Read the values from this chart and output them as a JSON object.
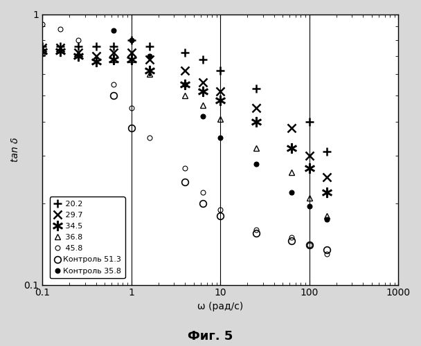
{
  "xlabel": "ω (рад/с)",
  "ylabel": "tan δ",
  "xlim": [
    0.1,
    1000
  ],
  "ylim": [
    0.1,
    1.0
  ],
  "figure_title": "Фиг. 5",
  "series": [
    {
      "label": " 20.2",
      "marker": "P",
      "markersize": 8,
      "fillstyle": "none",
      "mew": 1.5,
      "x": [
        0.1,
        0.158,
        0.251,
        0.398,
        0.631,
        1.0,
        1.585,
        3.98,
        6.31,
        10.0,
        25.1,
        100.0,
        158.0
      ],
      "y": [
        0.76,
        0.76,
        0.76,
        0.76,
        0.76,
        0.8,
        0.76,
        0.72,
        0.68,
        0.62,
        0.53,
        0.4,
        0.31
      ]
    },
    {
      "label": " 29.7",
      "marker": "X",
      "markersize": 7,
      "fillstyle": "none",
      "mew": 1.5,
      "x": [
        0.1,
        0.158,
        0.251,
        0.398,
        0.631,
        1.0,
        1.585,
        3.98,
        6.31,
        10.0,
        25.1,
        63.1,
        100.0,
        158.0
      ],
      "y": [
        0.75,
        0.75,
        0.72,
        0.7,
        0.72,
        0.72,
        0.68,
        0.62,
        0.56,
        0.52,
        0.45,
        0.38,
        0.3,
        0.25
      ]
    },
    {
      "label": " 34.5",
      "marker": "8",
      "markersize": 8,
      "fillstyle": "none",
      "mew": 1.0,
      "x": [
        0.1,
        0.158,
        0.251,
        0.398,
        0.631,
        1.0,
        1.585,
        3.98,
        6.31,
        10.0,
        25.1,
        63.1,
        100.0,
        158.0
      ],
      "y": [
        0.73,
        0.73,
        0.7,
        0.67,
        0.68,
        0.68,
        0.62,
        0.55,
        0.52,
        0.48,
        0.4,
        0.32,
        0.27,
        0.22
      ]
    },
    {
      "label": " 36.8",
      "marker": "^",
      "markersize": 6,
      "fillstyle": "none",
      "mew": 1.0,
      "x": [
        0.1,
        0.631,
        1.0,
        1.585,
        3.98,
        6.31,
        10.0,
        25.1,
        63.1,
        100.0,
        158.0
      ],
      "y": [
        0.72,
        0.68,
        0.68,
        0.6,
        0.5,
        0.46,
        0.41,
        0.32,
        0.26,
        0.21,
        0.18
      ]
    },
    {
      "label": " 45.8",
      "marker": "o",
      "markersize": 5,
      "fillstyle": "none",
      "mew": 1.0,
      "x": [
        0.1,
        0.158,
        0.251,
        0.398,
        0.631,
        1.0,
        1.585,
        3.98,
        6.31,
        10.0,
        25.1,
        63.1,
        100.0,
        158.0
      ],
      "y": [
        0.92,
        0.88,
        0.8,
        0.68,
        0.55,
        0.45,
        0.35,
        0.27,
        0.22,
        0.19,
        0.16,
        0.15,
        0.14,
        0.13
      ]
    },
    {
      "label": "Контроль 51.3",
      "marker": "o",
      "markersize": 7,
      "fillstyle": "none",
      "mew": 1.2,
      "x": [
        0.631,
        1.0,
        3.98,
        6.31,
        10.0,
        25.1,
        63.1,
        100.0,
        158.0
      ],
      "y": [
        0.5,
        0.38,
        0.24,
        0.2,
        0.18,
        0.155,
        0.145,
        0.14,
        0.135
      ]
    },
    {
      "label": "Контроль 35.8",
      "marker": "o",
      "markersize": 5,
      "fillstyle": "full",
      "mew": 1.0,
      "x": [
        0.631,
        1.0,
        1.585,
        3.98,
        6.31,
        10.0,
        25.1,
        63.1,
        100.0,
        158.0
      ],
      "y": [
        0.87,
        0.8,
        0.7,
        0.55,
        0.42,
        0.35,
        0.28,
        0.22,
        0.195,
        0.175
      ]
    }
  ]
}
